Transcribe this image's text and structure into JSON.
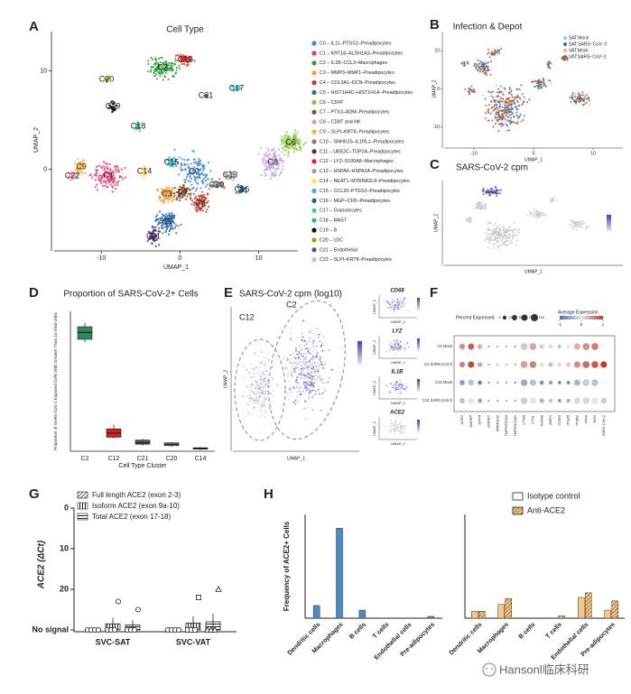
{
  "chart_data": [
    {
      "type": "umap",
      "letter": "A",
      "title": "Cell Type",
      "xlabel": "UMAP_1",
      "ylabel": "UMAP_2",
      "xlim": [
        -16,
        15
      ],
      "ylim": [
        -8,
        14
      ],
      "xticks": [
        -10,
        0,
        10
      ],
      "yticks": [
        0,
        10
      ],
      "clusters": [
        {
          "name": "C0",
          "label": "C0 – IL11–PTGS2–Preadipocytes",
          "color": "#3c8ad8"
        },
        {
          "name": "C1",
          "label": "C1 – KRT18–ALDH1A3–Preadipocytes",
          "color": "#e63c78"
        },
        {
          "name": "C2",
          "label": "C2 – IL1B–CCL3–Macrophages",
          "color": "#2e9e3e"
        },
        {
          "name": "C3",
          "label": "C3 – MMP3–MMP1–Preadipocytes",
          "color": "#f0a030"
        },
        {
          "name": "C4",
          "label": "C4 – COL3A1–DCN–Preadipocytes",
          "color": "#c0392b"
        },
        {
          "name": "C5",
          "label": "C5 – HIST1H4C–HIST1H1A–Preadipocytes",
          "color": "#2f6fb3"
        },
        {
          "name": "C6",
          "label": "C6 – CD4T",
          "color": "#8cc63f"
        },
        {
          "name": "C7",
          "label": "C7 – PTX3–ADM–Preadipocytes",
          "color": "#8b4a2b"
        },
        {
          "name": "C8",
          "label": "C8 – CD8T and NK",
          "color": "#c7a4d8"
        },
        {
          "name": "C9",
          "label": "C9 – SLPI–KRT8–Preadipocytes",
          "color": "#f5b342"
        },
        {
          "name": "C10",
          "label": "C10 – SNHG15–IL1RL1–Preadipocytes",
          "color": "#7f7f7f"
        },
        {
          "name": "C11",
          "label": "C11 – UBE2C–TOP2A–Preadipocytes",
          "color": "#4b2c6e"
        },
        {
          "name": "C12",
          "label": "C12 – LYZ–S100A8–Macrophages",
          "color": "#e02020"
        },
        {
          "name": "C13",
          "label": "C13 – HSPA6–HSPA1A–Preadipocytes",
          "color": "#9e9e9e"
        },
        {
          "name": "C14",
          "label": "C14 – NEAT1–MTRNR2L8–Preadipocytes",
          "color": "#f7e35a"
        },
        {
          "name": "C15",
          "label": "C15 – CCL20–PTGS2–Preadipocytes",
          "color": "#39b6c8"
        },
        {
          "name": "C16",
          "label": "C16 – MGP–CFD–Preadipocytes",
          "color": "#1f5f8b"
        },
        {
          "name": "C17",
          "label": "C17 – Granulocytes",
          "color": "#3ec6c6"
        },
        {
          "name": "C18",
          "label": "C18 – MAST",
          "color": "#2bb673"
        },
        {
          "name": "C19",
          "label": "C19 – B",
          "color": "#111111"
        },
        {
          "name": "C20",
          "label": "C20 – cDC",
          "color": "#a0a000"
        },
        {
          "name": "C21",
          "label": "C21 – Endothelial",
          "color": "#555555"
        },
        {
          "name": "C22",
          "label": "C22 – SLPI–KRT8–Preadipocytes",
          "color": "#f4a6c0"
        }
      ]
    },
    {
      "type": "umap",
      "letter": "B",
      "title": "Infection & Depot",
      "xlabel": "UMAP_1",
      "ylabel": "UMAP_2",
      "xlim": [
        -15,
        15
      ],
      "ylim": [
        -15,
        15
      ],
      "xticks": [
        -10,
        0,
        10
      ],
      "yticks": [
        -10,
        0,
        10
      ],
      "legend": [
        {
          "name": "SAT:Mock",
          "color": "#9ecae1"
        },
        {
          "name": "SAT:SARS−CoV−2",
          "color": "#3a68b5"
        },
        {
          "name": "VAT:Mock",
          "color": "#f4b183"
        },
        {
          "name": "VAT:SARS−CoV−2",
          "color": "#c55a11"
        }
      ]
    },
    {
      "type": "feature",
      "letter": "C",
      "title": "SARS-CoV-2 cpm",
      "xlabel": "UMAP_1",
      "ylabel": "UMAP_2",
      "color": "#5b4fb0"
    },
    {
      "type": "box",
      "letter": "D",
      "title": "Proportion of SARS-CoV-2+ Cells",
      "ylabel": "Proportion of SARS-CoV-2 Exposed Cells With Greater Than 10 Viral UMIs",
      "xlabel": "Cell Type Cluster",
      "ylim": [
        0,
        1
      ],
      "categories": [
        "C2",
        "C12",
        "C21",
        "C20",
        "C14"
      ],
      "boxes": [
        {
          "low": 0.78,
          "q1": 0.8,
          "median": 0.85,
          "q3": 0.89,
          "high": 0.92,
          "color": "#2e8b57"
        },
        {
          "low": 0.09,
          "q1": 0.1,
          "median": 0.13,
          "q3": 0.16,
          "high": 0.19,
          "color": "#cc2222"
        },
        {
          "low": 0.04,
          "q1": 0.05,
          "median": 0.06,
          "q3": 0.08,
          "high": 0.09,
          "color": "#555555"
        },
        {
          "low": 0.03,
          "q1": 0.04,
          "median": 0.05,
          "q3": 0.06,
          "high": 0.065,
          "color": "#8b6d3a"
        },
        {
          "low": 0.01,
          "q1": 0.015,
          "median": 0.02,
          "q3": 0.025,
          "high": 0.03,
          "color": "#c0392b"
        }
      ]
    },
    {
      "type": "feature",
      "letter": "E",
      "title": "SARS-CoV-2 cpm (log10)",
      "xlabel": "UMAP_1",
      "ylabel": "UMAP_2",
      "regions": [
        "C12",
        "C2"
      ],
      "genes": [
        "CD68",
        "LYZ",
        "IL1B",
        "ACE2"
      ],
      "color": "#5b4fb0"
    },
    {
      "type": "dot",
      "letter": "F",
      "size_title": "Percent Expressed",
      "sizes": [
        0,
        25,
        50,
        75,
        100
      ],
      "color_title": "Average Expression",
      "color_ticks": [
        -1,
        0,
        1
      ],
      "genes": [
        "ACE2",
        "ANPEP",
        "DPP4",
        "ENPEP",
        "TMPRSS2",
        "TMPRSS11A",
        "TMPRSS11D",
        "CTSB",
        "CTSL",
        "FURIN",
        "NRP1",
        "ITGB3",
        "ITGA5",
        "ITGB1",
        "PPIA",
        "BSG",
        "SARS-CoV-2"
      ],
      "rows": [
        {
          "name": "C2 Mock",
          "pct": [
            60,
            70,
            45,
            5,
            2,
            2,
            5,
            90,
            85,
            40,
            30,
            20,
            25,
            80,
            95,
            90,
            0
          ],
          "avg": [
            0.5,
            0.8,
            0.3,
            -0.5,
            -0.8,
            -0.8,
            -0.5,
            0.2,
            0.4,
            -0.2,
            0.1,
            -0.3,
            0,
            0.3,
            0.5,
            0.6,
            -1
          ]
        },
        {
          "name": "C2 SARS-CoV-2",
          "pct": [
            55,
            75,
            40,
            5,
            2,
            2,
            5,
            90,
            85,
            45,
            35,
            25,
            30,
            80,
            95,
            90,
            80
          ],
          "avg": [
            0.6,
            0.9,
            0.4,
            -0.4,
            -0.7,
            -0.7,
            -0.4,
            0.4,
            0.6,
            0,
            0.3,
            -0.1,
            0.2,
            0.5,
            0.7,
            0.8,
            1
          ]
        },
        {
          "name": "C12 Mock",
          "pct": [
            50,
            60,
            30,
            3,
            2,
            2,
            3,
            85,
            80,
            30,
            25,
            15,
            20,
            75,
            90,
            85,
            0
          ],
          "avg": [
            -0.6,
            -0.3,
            -0.8,
            -0.9,
            -1,
            -1,
            -0.9,
            -0.5,
            -0.3,
            -0.7,
            -0.6,
            -0.8,
            -0.7,
            -0.4,
            -0.2,
            -0.3,
            -1
          ]
        },
        {
          "name": "C12 SARS-CoV-2",
          "pct": [
            50,
            65,
            35,
            3,
            2,
            2,
            3,
            85,
            80,
            35,
            25,
            20,
            20,
            75,
            90,
            85,
            60
          ],
          "avg": [
            -0.3,
            0,
            -0.5,
            -0.7,
            -0.9,
            -0.9,
            -0.7,
            -0.2,
            0,
            -0.4,
            -0.3,
            -0.6,
            -0.5,
            -0.1,
            0.1,
            0,
            0.2
          ]
        }
      ]
    },
    {
      "type": "bar_dot",
      "letter": "G",
      "ylabel": "ACE2 (ΔCt)",
      "ylim": [
        0,
        30
      ],
      "yticks": [
        0,
        10,
        20,
        {
          "value": 30,
          "label": "No signal"
        }
      ],
      "categories": [
        "SVC-SAT",
        "SVC-VAT"
      ],
      "series": [
        {
          "name": "Full length ACE2 (exon 2-3)",
          "values": [
            30,
            30
          ],
          "errors": [
            0,
            0
          ],
          "points": [
            [
              30,
              30,
              30,
              30
            ],
            [
              30,
              30,
              30,
              30
            ]
          ]
        },
        {
          "name": "Isoform ACE2 (exon 9a-10)",
          "values": [
            28.5,
            28.3
          ],
          "errors": [
            1.5,
            1.7
          ],
          "points": [
            [
              30,
              30,
              30,
              23
            ],
            [
              30,
              30,
              30,
              22
            ]
          ]
        },
        {
          "name": "Total ACE2 (exon 17-18)",
          "values": [
            28.8,
            28
          ],
          "errors": [
            1.2,
            2
          ],
          "points": [
            [
              30,
              30,
              30,
              25
            ],
            [
              30,
              30,
              30,
              20
            ]
          ]
        }
      ]
    },
    {
      "type": "bar",
      "letter": "H",
      "ylabel": "Frequency of ACE2+ Cells",
      "ylim": [
        0,
        4.5
      ],
      "categories": [
        "Dendritic cells",
        "Macrophages",
        "B cells",
        "T cells",
        "Endothelial cells",
        "Pre-adipocytes"
      ],
      "series": [
        {
          "color": "#4a8bc9",
          "values": [
            0.55,
            3.9,
            0.35,
            0,
            0,
            0.08
          ]
        }
      ]
    },
    {
      "type": "bar",
      "ylim": [
        0,
        4.5
      ],
      "categories": [
        "Dendritic cells",
        "Macrophages",
        "B cells",
        "T cells",
        "Endothelial cells",
        "Pre-adipocytes"
      ],
      "series": [
        {
          "name": "Isotype control",
          "color": "#f2c98a",
          "values": [
            0.3,
            0.6,
            0,
            0,
            0.9,
            0.35
          ]
        },
        {
          "name": "Anti-ACE2",
          "color": "#c8902f",
          "values": [
            0.3,
            0.85,
            0,
            0.1,
            1.1,
            0.75
          ]
        }
      ]
    }
  ],
  "watermark": "Hansonl临床科研"
}
